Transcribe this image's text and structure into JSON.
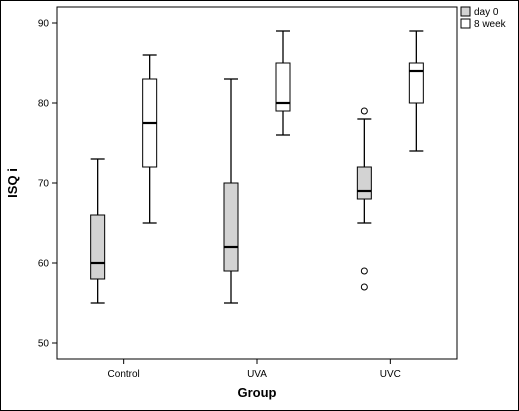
{
  "chart_data": {
    "type": "boxplot",
    "xlabel": "Group",
    "ylabel": "ISQ i",
    "categories": [
      "Control",
      "UVA",
      "UVC"
    ],
    "ylim": [
      48,
      92
    ],
    "yticks": [
      50,
      60,
      70,
      80,
      90
    ],
    "grid": false,
    "legend_position": "top-right",
    "series": [
      {
        "name": "day 0",
        "color": "#d3d3d3",
        "boxes": [
          {
            "category": "Control",
            "min": 55,
            "q1": 58,
            "median": 60,
            "q3": 66,
            "max": 73,
            "outliers": []
          },
          {
            "category": "UVA",
            "min": 55,
            "q1": 59,
            "median": 62,
            "q3": 70,
            "max": 83,
            "outliers": []
          },
          {
            "category": "UVC",
            "min": 65,
            "q1": 68,
            "median": 69,
            "q3": 72,
            "max": 78,
            "outliers": [
              79,
              59,
              57
            ]
          }
        ]
      },
      {
        "name": "8 week",
        "color": "#ffffff",
        "boxes": [
          {
            "category": "Control",
            "min": 65,
            "q1": 72,
            "median": 77.5,
            "q3": 83,
            "max": 86,
            "outliers": []
          },
          {
            "category": "UVA",
            "min": 76,
            "q1": 79,
            "median": 80,
            "q3": 85,
            "max": 89,
            "outliers": []
          },
          {
            "category": "UVC",
            "min": 74,
            "q1": 80,
            "median": 84,
            "q3": 85,
            "max": 89,
            "outliers": []
          }
        ]
      }
    ]
  }
}
